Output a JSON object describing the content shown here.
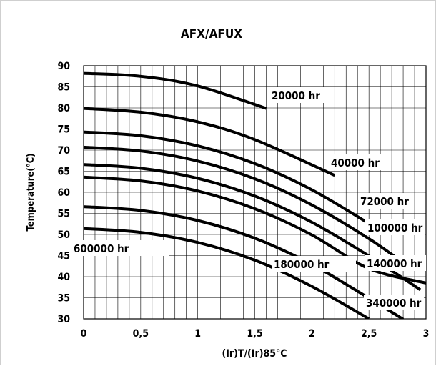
{
  "chart_data": {
    "type": "line",
    "title": "AFX/AFUX",
    "xlabel": "(Ir)T/(Ir)85°C",
    "ylabel": "Temperature(°C)",
    "xlim": [
      0,
      3
    ],
    "ylim": [
      30,
      90
    ],
    "x_ticks": [
      "0",
      "0,5",
      "1",
      "1,5",
      "2",
      "2,5",
      "3"
    ],
    "y_ticks": [
      "30",
      "35",
      "40",
      "45",
      "50",
      "55",
      "60",
      "65",
      "70",
      "75",
      "80",
      "85",
      "90"
    ],
    "grid": true,
    "series": [
      {
        "name": "20000 hr",
        "x": [
          0,
          0.5,
          1.0,
          1.6
        ],
        "y": [
          88.2,
          87.5,
          85.2,
          79.9
        ]
      },
      {
        "name": "40000 hr",
        "x": [
          0,
          0.5,
          1.0,
          1.5,
          2.2
        ],
        "y": [
          79.9,
          79.0,
          76.7,
          72.5,
          64.0
        ]
      },
      {
        "name": "72000 hr",
        "x": [
          0,
          0.5,
          1.0,
          1.5,
          2.0,
          2.5
        ],
        "y": [
          74.3,
          73.4,
          71.0,
          66.8,
          60.6,
          52.6
        ]
      },
      {
        "name": "100000 hr",
        "x": [
          0,
          0.5,
          1.0,
          1.5,
          2.0,
          2.5,
          2.8
        ],
        "y": [
          70.7,
          69.8,
          67.4,
          63.2,
          57.0,
          49.0,
          43.3
        ]
      },
      {
        "name": "",
        "x": [
          0,
          0.5,
          1.0,
          1.5,
          2.0,
          2.5,
          2.95
        ],
        "y": [
          66.6,
          65.7,
          63.3,
          59.1,
          52.9,
          44.9,
          36.9
        ]
      },
      {
        "name": "140000 hr",
        "x": [
          0,
          0.5,
          1.0,
          1.5,
          2.0,
          2.5,
          3.0
        ],
        "y": [
          63.6,
          62.7,
          60.3,
          56.1,
          49.9,
          41.9,
          38.5
        ]
      },
      {
        "name": "180000 hr",
        "x": [
          0,
          0.5,
          1.0,
          1.5,
          2.0,
          2.5,
          2.8
        ],
        "y": [
          56.6,
          55.7,
          53.3,
          49.1,
          42.9,
          34.9,
          29.9
        ]
      },
      {
        "name": "340000 hr",
        "x": [
          0,
          0.5,
          1.0,
          1.5,
          2.0,
          2.5
        ],
        "y": [
          51.4,
          50.5,
          48.1,
          43.9,
          37.7,
          30.0
        ]
      },
      {
        "name": "600000 hr",
        "x": [],
        "y": []
      }
    ]
  }
}
